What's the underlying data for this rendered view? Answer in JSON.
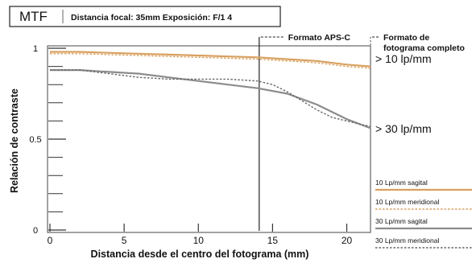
{
  "chart_data": {
    "type": "line",
    "header_tag": "MTF",
    "header_info": "Distancia focal: 35mm  Exposición: F/1 4",
    "xlabel": "Distancia desde el centro del fotograma (mm)",
    "ylabel": "Relación de contraste",
    "xlim": [
      0,
      21.6
    ],
    "ylim": [
      0,
      1.0
    ],
    "x_ticks": [
      0,
      5,
      10,
      15,
      20
    ],
    "x_tick_labels": [
      "0",
      "5",
      "10",
      "15",
      "20"
    ],
    "y_tick_labels": [
      {
        "value": 0,
        "label": "0"
      },
      {
        "value": 0.5,
        "label": "0.5"
      },
      {
        "value": 1,
        "label": "1"
      }
    ],
    "y_minor_ticks": [
      0.1,
      0.2,
      0.3,
      0.4,
      0.6,
      0.7,
      0.8,
      0.9
    ],
    "markers": [
      {
        "x": 14.1,
        "label": "Formato APS-C",
        "style": "dashed"
      },
      {
        "x": 21.6,
        "label_lines": [
          "Formato de",
          "fotograma completo"
        ],
        "style": "dashed"
      }
    ],
    "group_labels": [
      {
        "text": "> 10 lp/mm",
        "near": 0.9
      },
      {
        "text": "> 30 lp/mm",
        "near": 0.56
      }
    ],
    "series": [
      {
        "name": "10 Lp/mm sagital",
        "color": "#d9a060",
        "dash": false,
        "x": [
          0,
          2,
          4,
          6,
          8,
          10,
          12,
          14,
          16,
          18,
          20,
          21.6
        ],
        "y": [
          0.98,
          0.98,
          0.975,
          0.97,
          0.965,
          0.96,
          0.955,
          0.95,
          0.94,
          0.93,
          0.91,
          0.9
        ]
      },
      {
        "name": "10 Lp/mm meridional",
        "color": "#d9a060",
        "dash": true,
        "x": [
          0,
          2,
          4,
          6,
          8,
          10,
          12,
          14,
          16,
          18,
          20,
          21.6
        ],
        "y": [
          0.97,
          0.97,
          0.965,
          0.96,
          0.955,
          0.95,
          0.945,
          0.94,
          0.93,
          0.92,
          0.9,
          0.89
        ]
      },
      {
        "name": "30 Lp/mm sagital",
        "color": "#8c8c8c",
        "dash": false,
        "x": [
          0,
          2,
          4,
          6,
          8,
          10,
          12,
          14,
          16,
          18,
          20,
          21.6
        ],
        "y": [
          0.88,
          0.88,
          0.87,
          0.86,
          0.84,
          0.82,
          0.8,
          0.78,
          0.75,
          0.69,
          0.61,
          0.56
        ]
      },
      {
        "name": "30 Lp/mm meridional",
        "color": "#666666",
        "dash": true,
        "x": [
          0,
          2,
          4,
          6,
          8,
          10,
          12,
          14,
          15,
          16,
          17,
          18,
          19,
          20,
          21,
          21.6
        ],
        "y": [
          0.88,
          0.88,
          0.86,
          0.84,
          0.83,
          0.83,
          0.83,
          0.82,
          0.8,
          0.76,
          0.71,
          0.66,
          0.62,
          0.6,
          0.58,
          0.57
        ]
      }
    ]
  }
}
